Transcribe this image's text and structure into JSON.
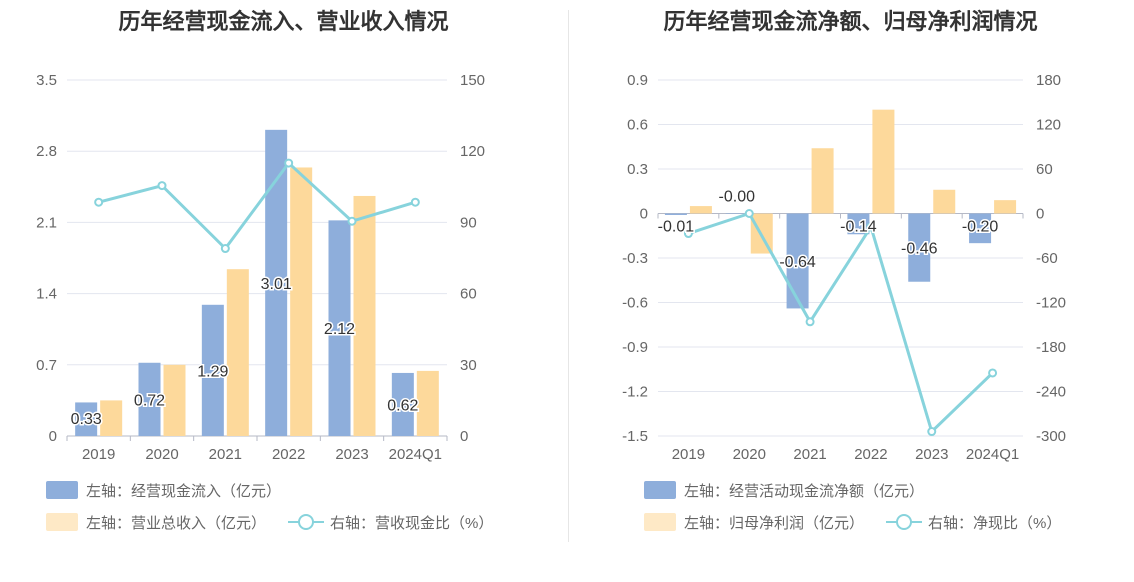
{
  "colors": {
    "bar_primary": "#8eaedb",
    "bar_secondary": "#fdd99b",
    "line": "#87d3dc",
    "grid": "#e3e6ef",
    "axis_text": "#666666"
  },
  "chart_data": [
    {
      "type": "bar",
      "title": "历年经营现金流入、营业收入情况",
      "categories": [
        "2019",
        "2020",
        "2021",
        "2022",
        "2023",
        "2024Q1"
      ],
      "y_left_ticks": [
        "0",
        "0.7",
        "1.4",
        "2.1",
        "2.8",
        "3.5"
      ],
      "y_right_ticks": [
        "0",
        "30",
        "60",
        "90",
        "120",
        "150"
      ],
      "ylim_left": [
        0,
        3.5
      ],
      "ylim_right": [
        0,
        150
      ],
      "series": [
        {
          "name": "左轴：经营现金流入（亿元）",
          "axis": "left",
          "type": "bar",
          "values": [
            0.33,
            0.72,
            1.29,
            3.01,
            2.12,
            0.62
          ],
          "labels": [
            "0.33",
            "0.72",
            "1.29",
            "3.01",
            "2.12",
            "0.62"
          ]
        },
        {
          "name": "左轴：营业总收入（亿元）",
          "axis": "left",
          "type": "bar",
          "values": [
            0.35,
            0.7,
            1.64,
            2.64,
            2.36,
            0.64
          ]
        },
        {
          "name": "右轴：营收现金比（%）",
          "axis": "right",
          "type": "line",
          "values": [
            98.5,
            105.5,
            79.0,
            115.0,
            90.5,
            98.5
          ]
        }
      ],
      "legend": [
        [
          "左轴：经营现金流入（亿元）"
        ],
        [
          "左轴：营业总收入（亿元）",
          "右轴：营收现金比（%）"
        ]
      ]
    },
    {
      "type": "bar",
      "title": "历年经营现金流净额、归母净利润情况",
      "categories": [
        "2019",
        "2020",
        "2021",
        "2022",
        "2023",
        "2024Q1"
      ],
      "y_left_ticks": [
        "-1.5",
        "-1.2",
        "-0.9",
        "-0.6",
        "-0.3",
        "0",
        "0.3",
        "0.6",
        "0.9"
      ],
      "y_right_ticks": [
        "-300",
        "-240",
        "-180",
        "-120",
        "-60",
        "0",
        "60",
        "120",
        "180"
      ],
      "ylim_left": [
        -1.5,
        0.9
      ],
      "ylim_right": [
        -300,
        180
      ],
      "series": [
        {
          "name": "左轴：经营活动现金流净额（亿元）",
          "axis": "left",
          "type": "bar",
          "values": [
            -0.01,
            -0.0,
            -0.64,
            -0.14,
            -0.46,
            -0.2
          ],
          "labels": [
            "-0.01",
            "-0.00",
            "-0.64",
            "-0.14",
            "-0.46",
            "-0.20"
          ]
        },
        {
          "name": "左轴：归母净利润（亿元）",
          "axis": "left",
          "type": "bar",
          "values": [
            0.05,
            -0.27,
            0.44,
            0.7,
            0.16,
            0.09
          ]
        },
        {
          "name": "右轴：净现比（%）",
          "axis": "right",
          "type": "line",
          "values": [
            -27,
            0,
            -146,
            -18,
            -294,
            -215
          ]
        }
      ],
      "legend": [
        [
          "左轴：经营活动现金流净额（亿元）"
        ],
        [
          "左轴：归母净利润（亿元）",
          "右轴：净现比（%）"
        ]
      ]
    }
  ]
}
